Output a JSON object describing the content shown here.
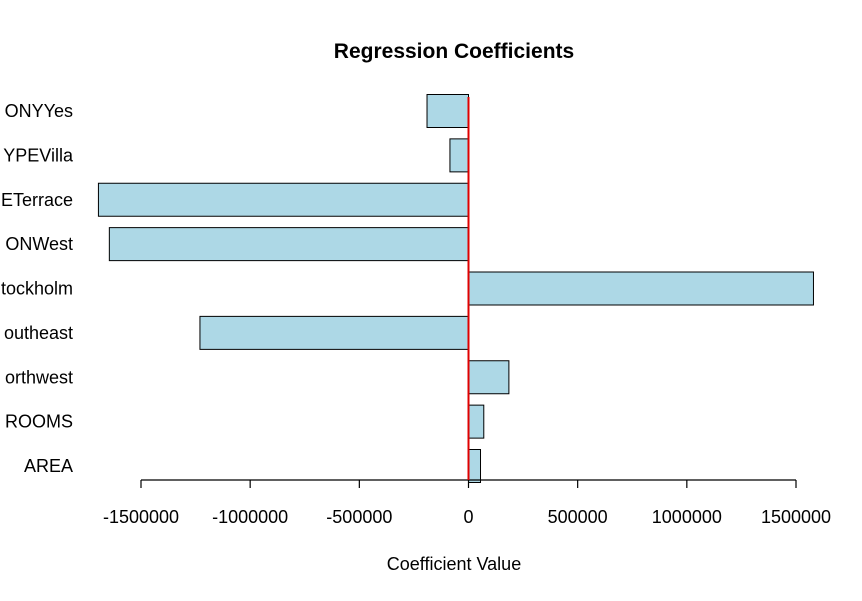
{
  "chart_data": {
    "type": "bar",
    "orientation": "horizontal",
    "title": "Regression Coefficients",
    "xlabel": "Coefficient Value",
    "ylabel": "",
    "xlim": [
      -1700000,
      1600000
    ],
    "x_ticks": [
      -1500000,
      -1000000,
      -500000,
      0,
      500000,
      1000000,
      1500000
    ],
    "x_tick_labels": [
      "-1500000",
      "-1000000",
      "-500000",
      "0",
      "500000",
      "1000000",
      "1500000"
    ],
    "categories": [
      "AREA",
      "ROOMS",
      "orthwest",
      "outheast",
      "tockholm",
      "ONWest",
      "ETerrace",
      "YPEVilla",
      "ONYYes"
    ],
    "values": [
      55000,
      70000,
      185000,
      -1230000,
      1580000,
      -1645000,
      -1695000,
      -85000,
      -190000
    ],
    "bar_color": "#ADD8E6",
    "reference_line": {
      "x": 0,
      "color": "#E00000"
    },
    "grid": false,
    "legend": "none"
  }
}
